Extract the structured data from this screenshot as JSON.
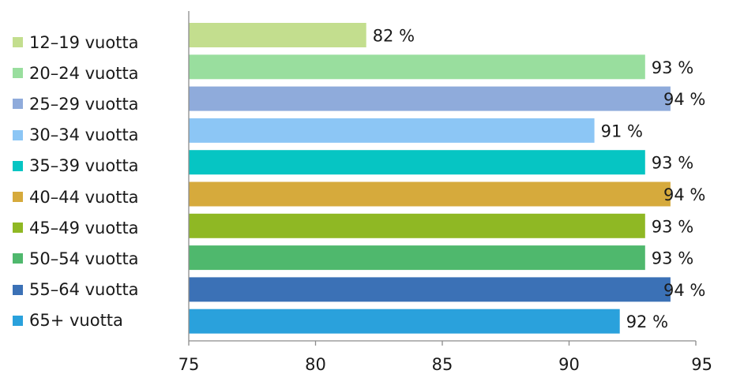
{
  "chart_data": {
    "type": "bar",
    "orientation": "horizontal",
    "categories": [
      "12–19 vuotta",
      "20–24 vuotta",
      "25–29 vuotta",
      "30–34 vuotta",
      "35–39 vuotta",
      "40–44 vuotta",
      "45–49 vuotta",
      "50–54 vuotta",
      "55–64 vuotta",
      "65+ vuotta"
    ],
    "values": [
      82,
      93,
      94,
      91,
      93,
      94,
      93,
      93,
      94,
      92
    ],
    "data_labels": [
      "82 %",
      "93 %",
      "94 %",
      "91 %",
      "93 %",
      "94 %",
      "93 %",
      "93 %",
      "94 %",
      "92 %"
    ],
    "colors": [
      "#c3de8e",
      "#99de9e",
      "#8fabdb",
      "#8cc6f5",
      "#06c5c3",
      "#d6aa3c",
      "#8fb824",
      "#4fb86d",
      "#3b71b6",
      "#2aa1dc"
    ],
    "xlim": [
      75,
      95
    ],
    "xticks": [
      75,
      80,
      85,
      90,
      95
    ],
    "grid": false,
    "legend_position": "left"
  }
}
